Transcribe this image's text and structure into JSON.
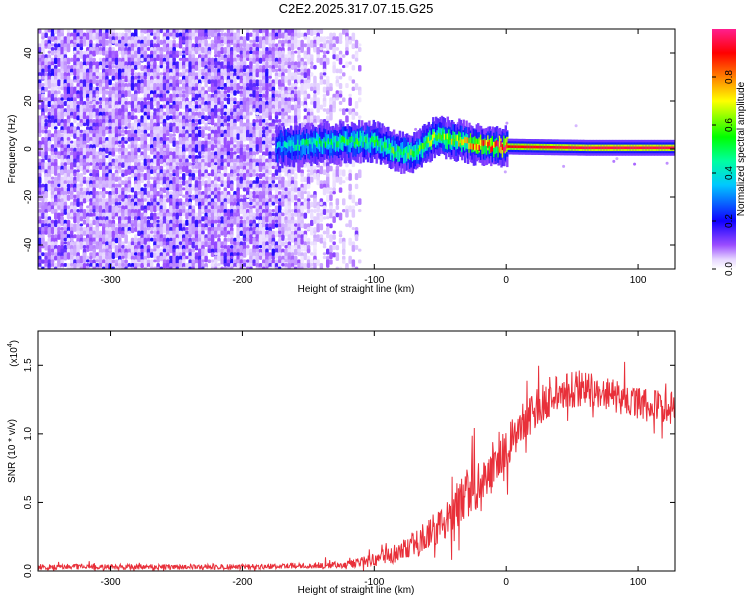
{
  "title": "C2E2.2025.317.07.15.G25",
  "chart_data": [
    {
      "type": "heatmap",
      "xlabel": "Height of straight line (km)",
      "ylabel": "Frequency (Hz)",
      "xlim": [
        -355,
        128
      ],
      "ylim": [
        -50,
        50
      ],
      "xticks": [
        -300,
        -200,
        -100,
        0,
        100
      ],
      "yticks": [
        -40,
        -20,
        0,
        20,
        40
      ],
      "xtick_labels": [
        "-300",
        "-200",
        "-100",
        "0",
        "100"
      ],
      "ytick_labels": [
        "-40",
        "-20",
        "0",
        "20",
        "40"
      ],
      "colorbar": {
        "label": "Normalized spectral amplitude",
        "range": [
          0,
          1
        ],
        "ticks": [
          0.0,
          0.2,
          0.4,
          0.6,
          0.8
        ],
        "tick_labels": [
          "0.0",
          "0.2",
          "0.4",
          "0.6",
          "0.8"
        ],
        "colors": [
          "#ffffff",
          "#8a2be2",
          "#0000ff",
          "#00ffff",
          "#00ff00",
          "#ffff00",
          "#ff0000",
          "#ff00ff"
        ]
      },
      "noise_region_km": [
        -355,
        -112
      ],
      "signal_track": [
        {
          "x": -175,
          "y": 1,
          "amp": 0.35
        },
        {
          "x": -150,
          "y": 2,
          "amp": 0.45
        },
        {
          "x": -125,
          "y": 3,
          "amp": 0.5
        },
        {
          "x": -100,
          "y": 3,
          "amp": 0.5
        },
        {
          "x": -85,
          "y": -1,
          "amp": 0.55
        },
        {
          "x": -70,
          "y": -2,
          "amp": 0.55
        },
        {
          "x": -55,
          "y": 5,
          "amp": 0.6
        },
        {
          "x": -40,
          "y": 4,
          "amp": 0.65
        },
        {
          "x": -25,
          "y": 2,
          "amp": 0.75
        },
        {
          "x": -10,
          "y": 1,
          "amp": 0.85
        },
        {
          "x": 0,
          "y": 1,
          "amp": 0.9
        },
        {
          "x": 60,
          "y": 0.5,
          "amp": 0.95
        },
        {
          "x": 128,
          "y": 0.5,
          "amp": 0.95
        }
      ]
    },
    {
      "type": "line",
      "xlabel": "Height of straight line (km)",
      "ylabel": "SNR (10 * v/v)",
      "scale_label": "(x10",
      "scale_exponent": "4",
      "scale_suffix": ")",
      "xlim": [
        -355,
        128
      ],
      "ylim": [
        0,
        1.75
      ],
      "xticks": [
        -300,
        -200,
        -100,
        0,
        100
      ],
      "yticks": [
        0.0,
        0.5,
        1.0,
        1.5
      ],
      "xtick_labels": [
        "-300",
        "-200",
        "-100",
        "0",
        "100"
      ],
      "ytick_labels": [
        "0.0",
        "0.5",
        "1.0",
        "1.5"
      ],
      "color": "#e8303a",
      "series": [
        {
          "name": "SNR",
          "x": [
            -355,
            -300,
            -250,
            -200,
            -150,
            -120,
            -100,
            -80,
            -60,
            -50,
            -40,
            -30,
            -20,
            -10,
            0,
            10,
            20,
            30,
            40,
            50,
            60,
            70,
            80,
            90,
            100,
            110,
            120,
            128
          ],
          "y": [
            0.03,
            0.03,
            0.03,
            0.03,
            0.04,
            0.05,
            0.08,
            0.14,
            0.25,
            0.33,
            0.45,
            0.55,
            0.62,
            0.72,
            0.9,
            1.05,
            1.15,
            1.25,
            1.3,
            1.33,
            1.33,
            1.3,
            1.28,
            1.25,
            1.22,
            1.2,
            1.2,
            1.22
          ],
          "noise_amplitude": [
            0.02,
            0.02,
            0.02,
            0.02,
            0.02,
            0.03,
            0.05,
            0.08,
            0.12,
            0.15,
            0.18,
            0.2,
            0.18,
            0.15,
            0.15,
            0.15,
            0.15,
            0.15,
            0.15,
            0.14,
            0.13,
            0.12,
            0.12,
            0.12,
            0.12,
            0.12,
            0.12,
            0.12
          ]
        }
      ]
    }
  ]
}
